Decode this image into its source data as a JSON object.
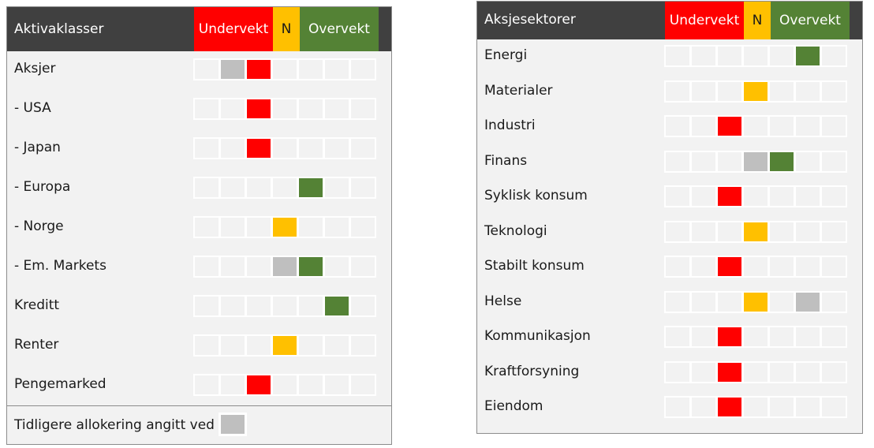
{
  "colors": {
    "under": "#ff0000",
    "neutral": "#ffc000",
    "over": "#548235",
    "previous": "#bfbfbf",
    "header_bg": "#404040"
  },
  "scale": {
    "under_label": "Undervekt",
    "neutral_label": "N",
    "over_label": "Overvekt",
    "steps": 7
  },
  "chart_data": [
    {
      "type": "table",
      "title": "Aktivaklasser",
      "scale_labels": [
        "Undervekt",
        "N",
        "Overvekt"
      ],
      "rows": [
        {
          "label": "Aksjer",
          "position": 3,
          "previous": 2
        },
        {
          "label": "- USA",
          "position": 3
        },
        {
          "label": "- Japan",
          "position": 3
        },
        {
          "label": "- Europa",
          "position": 5
        },
        {
          "label": "- Norge",
          "position": 4
        },
        {
          "label": "- Em. Markets",
          "position": 5,
          "previous": 4
        },
        {
          "label": "Kreditt",
          "position": 6
        },
        {
          "label": "Renter",
          "position": 4
        },
        {
          "label": "Pengemarked",
          "position": 3
        }
      ],
      "footer": "Tidligere allokering angitt ved"
    },
    {
      "type": "table",
      "title": "Aksjesektorer",
      "scale_labels": [
        "Undervekt",
        "N",
        "Overvekt"
      ],
      "rows": [
        {
          "label": "Energi",
          "position": 6
        },
        {
          "label": "Materialer",
          "position": 4
        },
        {
          "label": "Industri",
          "position": 3
        },
        {
          "label": "Finans",
          "position": 5,
          "previous": 4
        },
        {
          "label": "Syklisk konsum",
          "position": 3
        },
        {
          "label": "Teknologi",
          "position": 4
        },
        {
          "label": "Stabilt konsum",
          "position": 3
        },
        {
          "label": "Helse",
          "position": 4,
          "previous": 6
        },
        {
          "label": "Kommunikasjon",
          "position": 3
        },
        {
          "label": "Kraftforsyning",
          "position": 3
        },
        {
          "label": "Eiendom",
          "position": 3
        }
      ]
    }
  ]
}
